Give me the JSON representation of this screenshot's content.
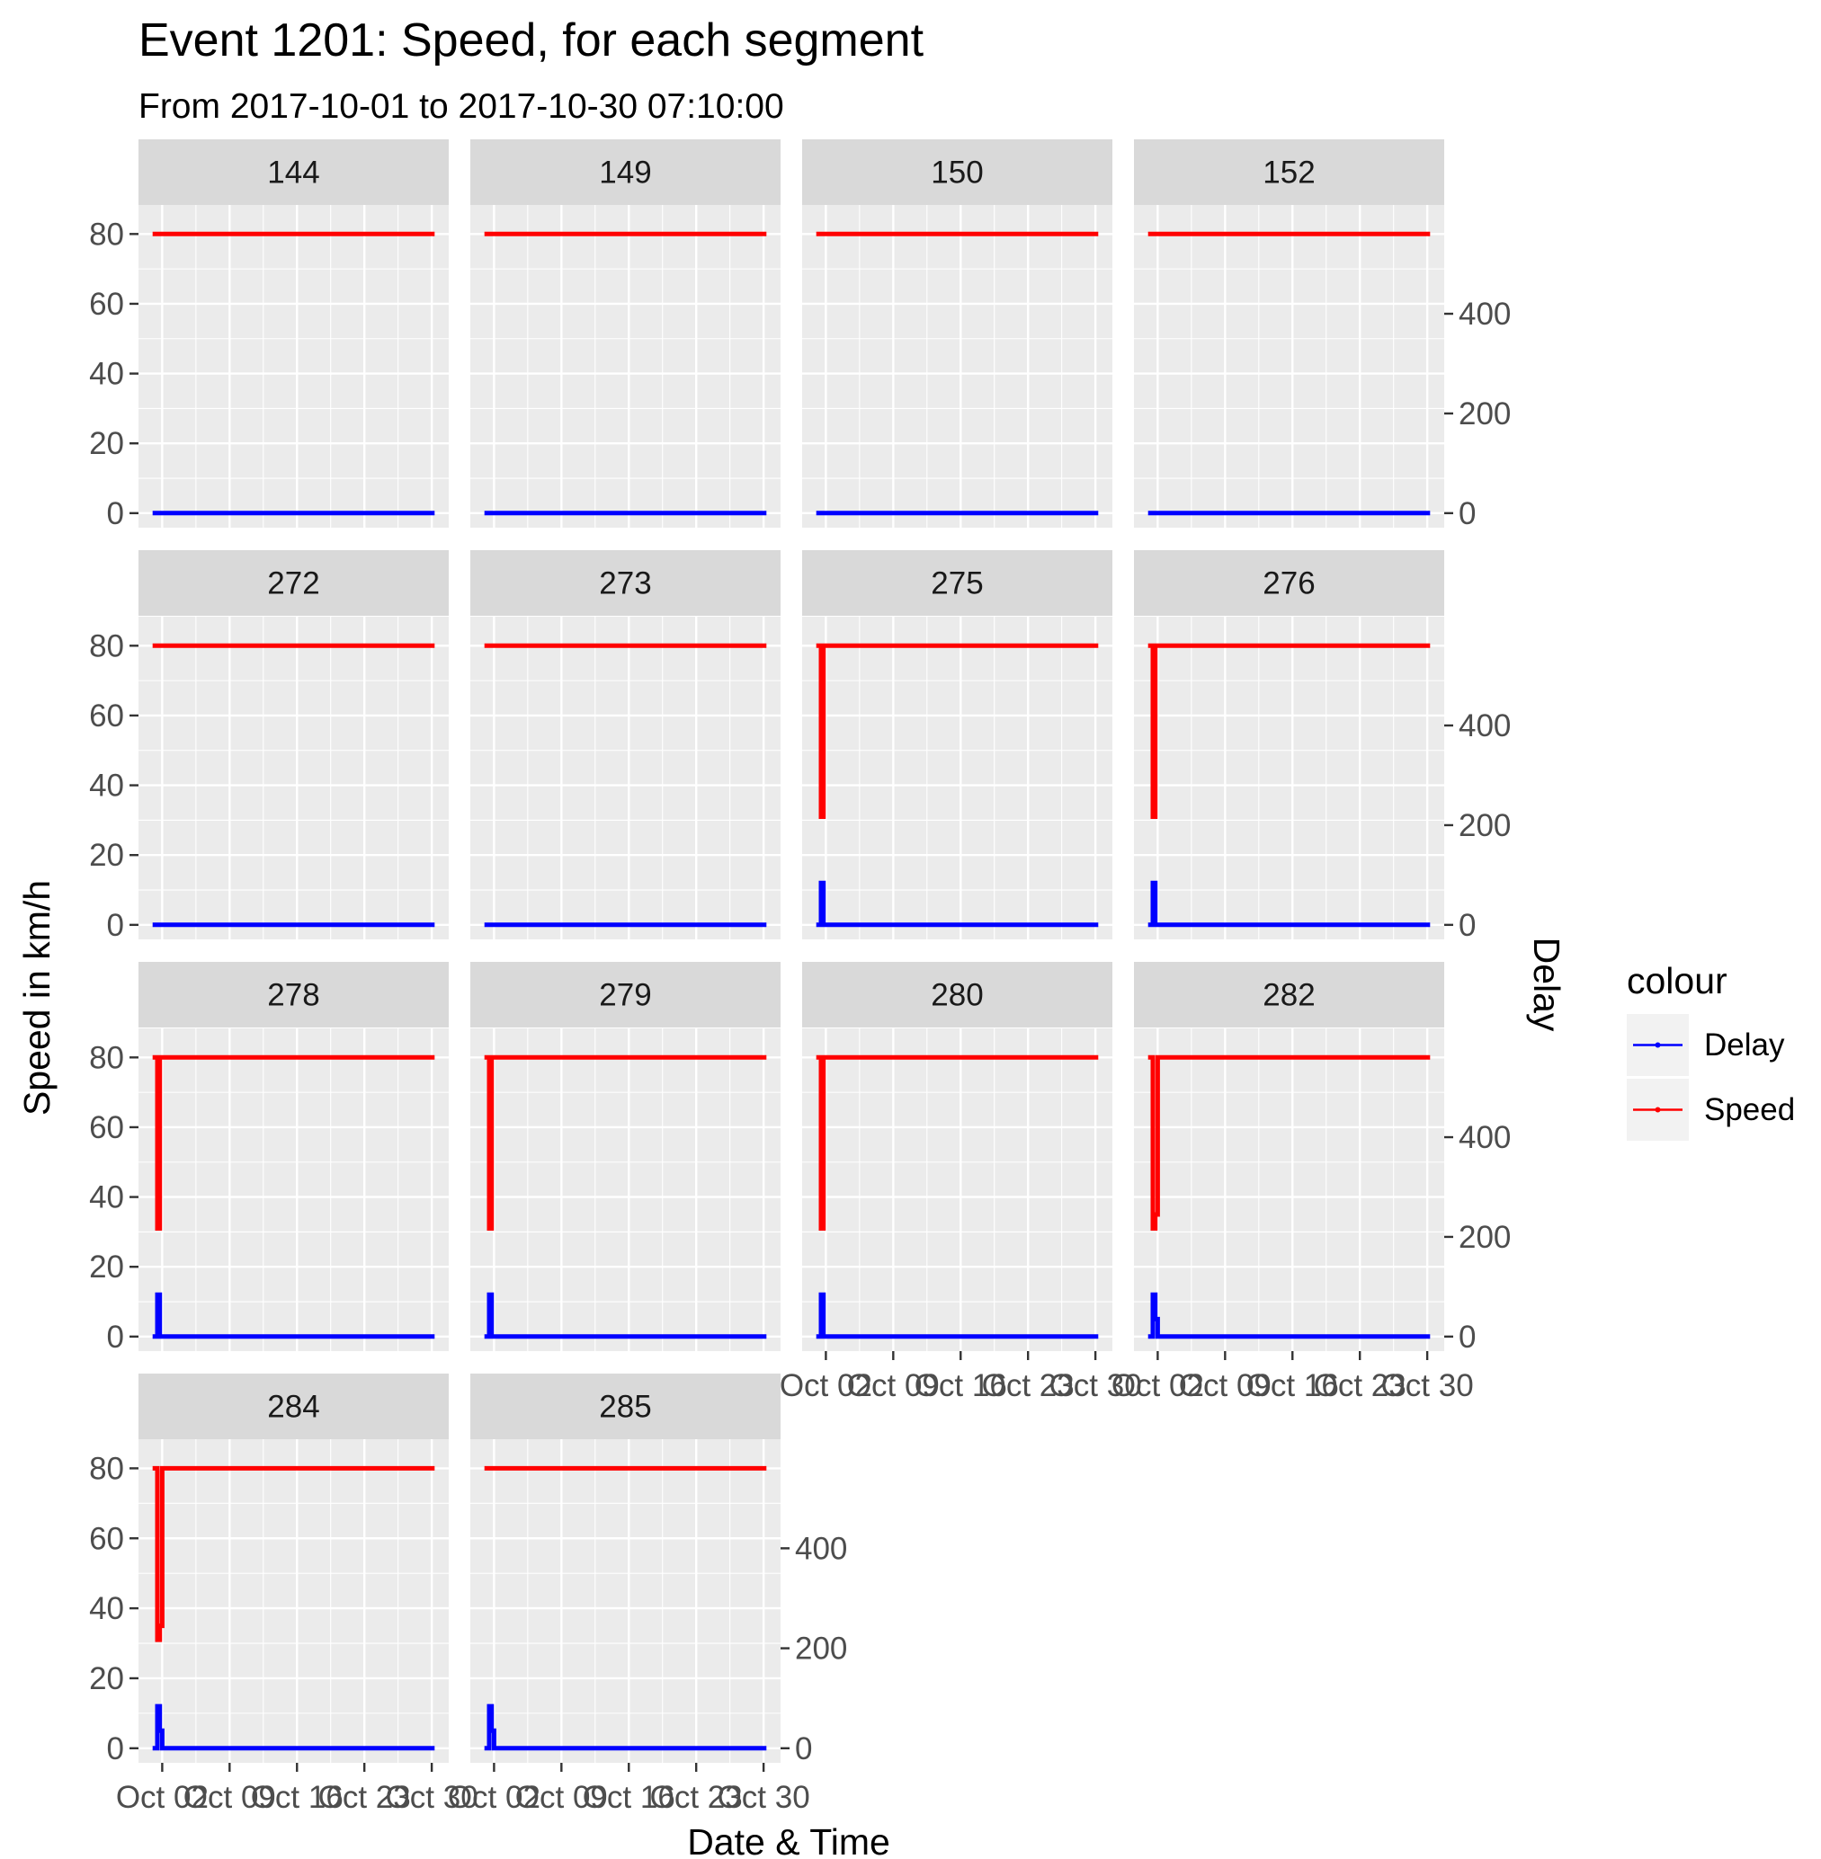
{
  "chart_data": {
    "type": "line",
    "title": "Event 1201: Speed, for each segment",
    "subtitle": "From 2017-10-01 to 2017-10-30 07:10:00",
    "xlabel": "Date & Time",
    "ylabel": "Speed in km/h",
    "y2label": "Delay",
    "x_ticks": [
      "Oct 02",
      "Oct 09",
      "Oct 16",
      "Oct 23",
      "Oct 30"
    ],
    "xlim": [
      "2017-10-01",
      "2017-10-30 07:10:00"
    ],
    "y_ticks": [
      0,
      20,
      40,
      60,
      80
    ],
    "ylim": [
      0,
      80
    ],
    "y2_ticks": [
      0,
      200,
      400
    ],
    "y2lim": [
      0,
      560
    ],
    "grid": true,
    "legend": {
      "title": "colour",
      "position": "right",
      "entries": [
        {
          "label": "Delay",
          "color": "#0000ff"
        },
        {
          "label": "Speed",
          "color": "#ff0000"
        }
      ]
    },
    "panels": [
      {
        "segment": "144",
        "speed": [
          [
            "2017-10-01",
            80
          ],
          [
            "2017-10-30 07:10:00",
            80
          ]
        ],
        "delay": [
          [
            "2017-10-01",
            0
          ],
          [
            "2017-10-30 07:10:00",
            0
          ]
        ]
      },
      {
        "segment": "149",
        "speed": [
          [
            "2017-10-01",
            80
          ],
          [
            "2017-10-30 07:10:00",
            80
          ]
        ],
        "delay": [
          [
            "2017-10-01",
            0
          ],
          [
            "2017-10-30 07:10:00",
            0
          ]
        ]
      },
      {
        "segment": "150",
        "speed": [
          [
            "2017-10-01",
            80
          ],
          [
            "2017-10-30 07:10:00",
            80
          ]
        ],
        "delay": [
          [
            "2017-10-01",
            0
          ],
          [
            "2017-10-30 07:10:00",
            0
          ]
        ]
      },
      {
        "segment": "152",
        "speed": [
          [
            "2017-10-01",
            80
          ],
          [
            "2017-10-30 07:10:00",
            80
          ]
        ],
        "delay": [
          [
            "2017-10-01",
            0
          ],
          [
            "2017-10-30 07:10:00",
            0
          ]
        ]
      },
      {
        "segment": "272",
        "speed": [
          [
            "2017-10-01",
            80
          ],
          [
            "2017-10-30 07:10:00",
            80
          ]
        ],
        "delay": [
          [
            "2017-10-01",
            0
          ],
          [
            "2017-10-30 07:10:00",
            0
          ]
        ]
      },
      {
        "segment": "273",
        "speed": [
          [
            "2017-10-01",
            80
          ],
          [
            "2017-10-30 07:10:00",
            80
          ]
        ],
        "delay": [
          [
            "2017-10-01",
            0
          ],
          [
            "2017-10-30 07:10:00",
            0
          ]
        ]
      },
      {
        "segment": "275",
        "speed": [
          [
            "2017-10-01",
            80
          ],
          [
            "2017-10-01 12:00",
            80
          ],
          [
            "2017-10-01 12:00",
            31
          ],
          [
            "2017-10-01 18:00",
            31
          ],
          [
            "2017-10-01 18:00",
            80
          ],
          [
            "2017-10-30 07:10:00",
            80
          ]
        ],
        "delay": [
          [
            "2017-10-01",
            0
          ],
          [
            "2017-10-01 12:00",
            0
          ],
          [
            "2017-10-01 12:00",
            84
          ],
          [
            "2017-10-01 18:00",
            84
          ],
          [
            "2017-10-01 18:00",
            0
          ],
          [
            "2017-10-30 07:10:00",
            0
          ]
        ]
      },
      {
        "segment": "276",
        "speed": [
          [
            "2017-10-01",
            80
          ],
          [
            "2017-10-01 12:00",
            80
          ],
          [
            "2017-10-01 12:00",
            31
          ],
          [
            "2017-10-01 18:00",
            31
          ],
          [
            "2017-10-01 18:00",
            80
          ],
          [
            "2017-10-30 07:10:00",
            80
          ]
        ],
        "delay": [
          [
            "2017-10-01",
            0
          ],
          [
            "2017-10-01 12:00",
            0
          ],
          [
            "2017-10-01 12:00",
            84
          ],
          [
            "2017-10-01 18:00",
            84
          ],
          [
            "2017-10-01 18:00",
            0
          ],
          [
            "2017-10-30 07:10:00",
            0
          ]
        ]
      },
      {
        "segment": "278",
        "speed": [
          [
            "2017-10-01",
            80
          ],
          [
            "2017-10-01 12:00",
            80
          ],
          [
            "2017-10-01 12:00",
            31
          ],
          [
            "2017-10-01 18:00",
            31
          ],
          [
            "2017-10-01 18:00",
            80
          ],
          [
            "2017-10-30 07:10:00",
            80
          ]
        ],
        "delay": [
          [
            "2017-10-01",
            0
          ],
          [
            "2017-10-01 12:00",
            0
          ],
          [
            "2017-10-01 12:00",
            84
          ],
          [
            "2017-10-01 18:00",
            84
          ],
          [
            "2017-10-01 18:00",
            0
          ],
          [
            "2017-10-30 07:10:00",
            0
          ]
        ]
      },
      {
        "segment": "279",
        "speed": [
          [
            "2017-10-01",
            80
          ],
          [
            "2017-10-01 12:00",
            80
          ],
          [
            "2017-10-01 12:00",
            31
          ],
          [
            "2017-10-01 18:00",
            31
          ],
          [
            "2017-10-01 18:00",
            80
          ],
          [
            "2017-10-30 07:10:00",
            80
          ]
        ],
        "delay": [
          [
            "2017-10-01",
            0
          ],
          [
            "2017-10-01 12:00",
            0
          ],
          [
            "2017-10-01 12:00",
            84
          ],
          [
            "2017-10-01 18:00",
            84
          ],
          [
            "2017-10-01 18:00",
            0
          ],
          [
            "2017-10-30 07:10:00",
            0
          ]
        ]
      },
      {
        "segment": "280",
        "speed": [
          [
            "2017-10-01",
            80
          ],
          [
            "2017-10-01 12:00",
            80
          ],
          [
            "2017-10-01 12:00",
            31
          ],
          [
            "2017-10-01 18:00",
            31
          ],
          [
            "2017-10-01 18:00",
            80
          ],
          [
            "2017-10-30 07:10:00",
            80
          ]
        ],
        "delay": [
          [
            "2017-10-01",
            0
          ],
          [
            "2017-10-01 12:00",
            0
          ],
          [
            "2017-10-01 12:00",
            84
          ],
          [
            "2017-10-01 18:00",
            84
          ],
          [
            "2017-10-01 18:00",
            0
          ],
          [
            "2017-10-30 07:10:00",
            0
          ]
        ]
      },
      {
        "segment": "282",
        "speed": [
          [
            "2017-10-01",
            80
          ],
          [
            "2017-10-01 12:00",
            80
          ],
          [
            "2017-10-01 12:00",
            31
          ],
          [
            "2017-10-01 18:00",
            31
          ],
          [
            "2017-10-01 18:00",
            35
          ],
          [
            "2017-10-02",
            35
          ],
          [
            "2017-10-02",
            80
          ],
          [
            "2017-10-30 07:10:00",
            80
          ]
        ],
        "delay": [
          [
            "2017-10-01",
            0
          ],
          [
            "2017-10-01 12:00",
            0
          ],
          [
            "2017-10-01 12:00",
            84
          ],
          [
            "2017-10-01 18:00",
            84
          ],
          [
            "2017-10-01 18:00",
            35
          ],
          [
            "2017-10-02",
            35
          ],
          [
            "2017-10-02",
            0
          ],
          [
            "2017-10-30 07:10:00",
            0
          ]
        ]
      },
      {
        "segment": "284",
        "speed": [
          [
            "2017-10-01",
            80
          ],
          [
            "2017-10-01 12:00",
            80
          ],
          [
            "2017-10-01 12:00",
            31
          ],
          [
            "2017-10-01 18:00",
            31
          ],
          [
            "2017-10-01 18:00",
            35
          ],
          [
            "2017-10-02",
            35
          ],
          [
            "2017-10-02",
            80
          ],
          [
            "2017-10-30 07:10:00",
            80
          ]
        ],
        "delay": [
          [
            "2017-10-01",
            0
          ],
          [
            "2017-10-01 12:00",
            0
          ],
          [
            "2017-10-01 12:00",
            84
          ],
          [
            "2017-10-01 18:00",
            84
          ],
          [
            "2017-10-01 18:00",
            35
          ],
          [
            "2017-10-02",
            35
          ],
          [
            "2017-10-02",
            0
          ],
          [
            "2017-10-30 07:10:00",
            0
          ]
        ]
      },
      {
        "segment": "285",
        "speed": [
          [
            "2017-10-01",
            80
          ],
          [
            "2017-10-30 07:10:00",
            80
          ]
        ],
        "delay": [
          [
            "2017-10-01",
            0
          ],
          [
            "2017-10-01 12:00",
            0
          ],
          [
            "2017-10-01 12:00",
            84
          ],
          [
            "2017-10-01 18:00",
            84
          ],
          [
            "2017-10-01 18:00",
            35
          ],
          [
            "2017-10-02",
            35
          ],
          [
            "2017-10-02",
            0
          ],
          [
            "2017-10-30 07:10:00",
            0
          ]
        ]
      }
    ]
  }
}
